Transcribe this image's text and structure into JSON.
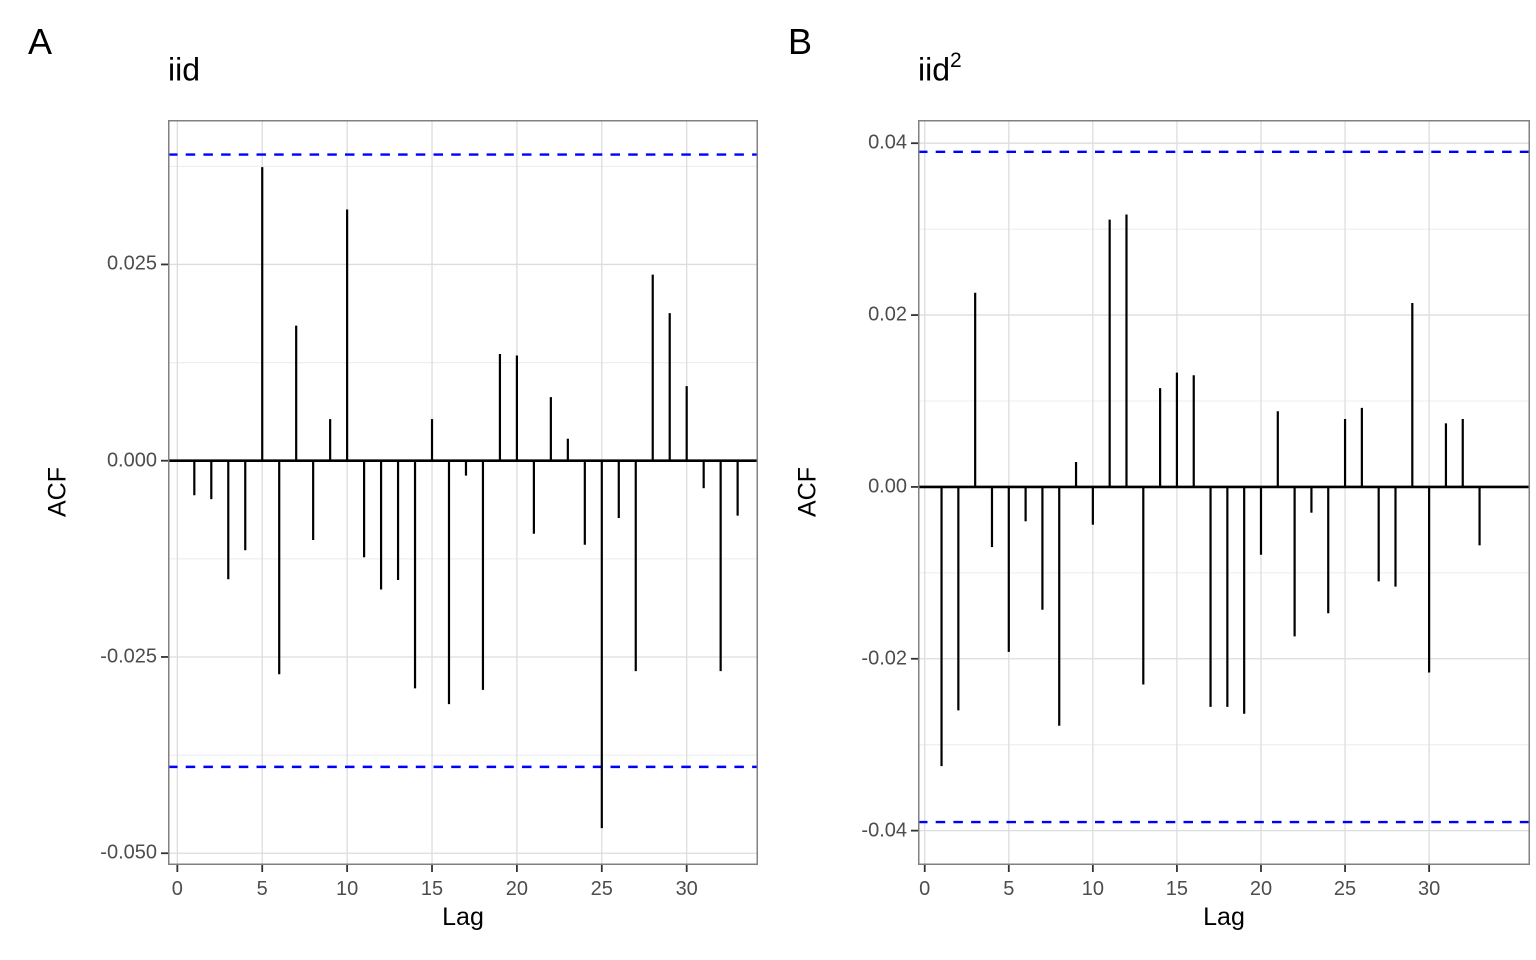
{
  "figure": {
    "panels": [
      {
        "letter": "A",
        "title": "iid",
        "title_sup": "",
        "xlabel": "Lag",
        "ylabel": "ACF"
      },
      {
        "letter": "B",
        "title": "iid",
        "title_sup": "2",
        "xlabel": "Lag",
        "ylabel": "ACF"
      }
    ]
  },
  "colors": {
    "ci_line": "#0000FF",
    "bar": "#000000",
    "zero_line": "#000000",
    "grid_major": "#DDDDDD",
    "grid_minor": "#ECECEC",
    "panel_border": "#808080",
    "tick_mark": "#333333",
    "tick_text": "#4D4D4D",
    "text": "#000000",
    "background": "#FFFFFF"
  },
  "chart_data": [
    {
      "type": "bar",
      "panel": "A",
      "title": "iid",
      "xlabel": "Lag",
      "ylabel": "ACF",
      "x": [
        1,
        2,
        3,
        4,
        5,
        6,
        7,
        8,
        9,
        10,
        11,
        12,
        13,
        14,
        15,
        16,
        17,
        18,
        19,
        20,
        21,
        22,
        23,
        24,
        25,
        26,
        27,
        28,
        29,
        30,
        31,
        32,
        33
      ],
      "values": [
        -0.0044,
        -0.0049,
        -0.0151,
        -0.0114,
        0.0374,
        -0.0272,
        0.0172,
        -0.0101,
        0.0053,
        0.032,
        -0.0123,
        -0.0164,
        -0.0152,
        -0.029,
        0.0053,
        -0.031,
        -0.0019,
        -0.0292,
        0.0136,
        0.0134,
        -0.0093,
        0.0081,
        0.0028,
        -0.0107,
        -0.0468,
        -0.0073,
        -0.0268,
        0.0237,
        0.0188,
        0.0095,
        -0.0035,
        -0.0268,
        -0.007
      ],
      "ci_upper": 0.039,
      "ci_lower": -0.039,
      "ci_style": "dashed blue horizontal lines",
      "xticks": [
        0,
        5,
        10,
        15,
        20,
        25,
        30
      ],
      "xtick_labels": [
        "0",
        "5",
        "10",
        "15",
        "20",
        "25",
        "30"
      ],
      "yticks": [
        0.025,
        0.0,
        -0.025,
        -0.05
      ],
      "ytick_labels": [
        "0.025",
        "0.000",
        "-0.025",
        "-0.050"
      ],
      "yminor": [
        0.0375,
        0.0125,
        -0.0125,
        -0.0375
      ],
      "xlim": [
        -0.55,
        34.2
      ],
      "ylim": [
        -0.0515,
        0.0434
      ],
      "grid": "horizontal major+minor, vertical major only",
      "legend": "none"
    },
    {
      "type": "bar",
      "panel": "B",
      "title": "iid^2",
      "xlabel": "Lag",
      "ylabel": "ACF",
      "x": [
        1,
        2,
        3,
        4,
        5,
        6,
        7,
        8,
        9,
        10,
        11,
        12,
        13,
        14,
        15,
        16,
        17,
        18,
        19,
        20,
        21,
        22,
        23,
        24,
        25,
        26,
        27,
        28,
        29,
        30,
        31,
        32,
        33
      ],
      "values": [
        -0.0325,
        -0.026,
        0.0226,
        -0.007,
        -0.0192,
        -0.004,
        -0.0143,
        -0.0278,
        0.0029,
        -0.0044,
        0.0311,
        0.0317,
        -0.023,
        0.0115,
        0.0133,
        0.013,
        -0.0256,
        -0.0256,
        -0.0264,
        -0.0079,
        0.0088,
        -0.0174,
        -0.003,
        -0.0147,
        0.0079,
        0.0092,
        -0.011,
        -0.0116,
        0.0214,
        -0.0216,
        0.0074,
        0.0079,
        -0.0068
      ],
      "ci_upper": 0.039,
      "ci_lower": -0.039,
      "ci_style": "dashed blue horizontal lines",
      "xticks": [
        0,
        5,
        10,
        15,
        20,
        25,
        30
      ],
      "xtick_labels": [
        "0",
        "5",
        "10",
        "15",
        "20",
        "25",
        "30"
      ],
      "yticks": [
        0.04,
        0.02,
        0.0,
        -0.02,
        -0.04
      ],
      "ytick_labels": [
        "0.04",
        "0.02",
        "0.00",
        "-0.02",
        "-0.04"
      ],
      "yminor": [
        0.03,
        0.01,
        -0.01,
        -0.03
      ],
      "xlim": [
        -0.4,
        36.0
      ],
      "ylim": [
        -0.044,
        0.0427
      ],
      "grid": "horizontal major+minor, vertical major only",
      "legend": "none"
    }
  ]
}
